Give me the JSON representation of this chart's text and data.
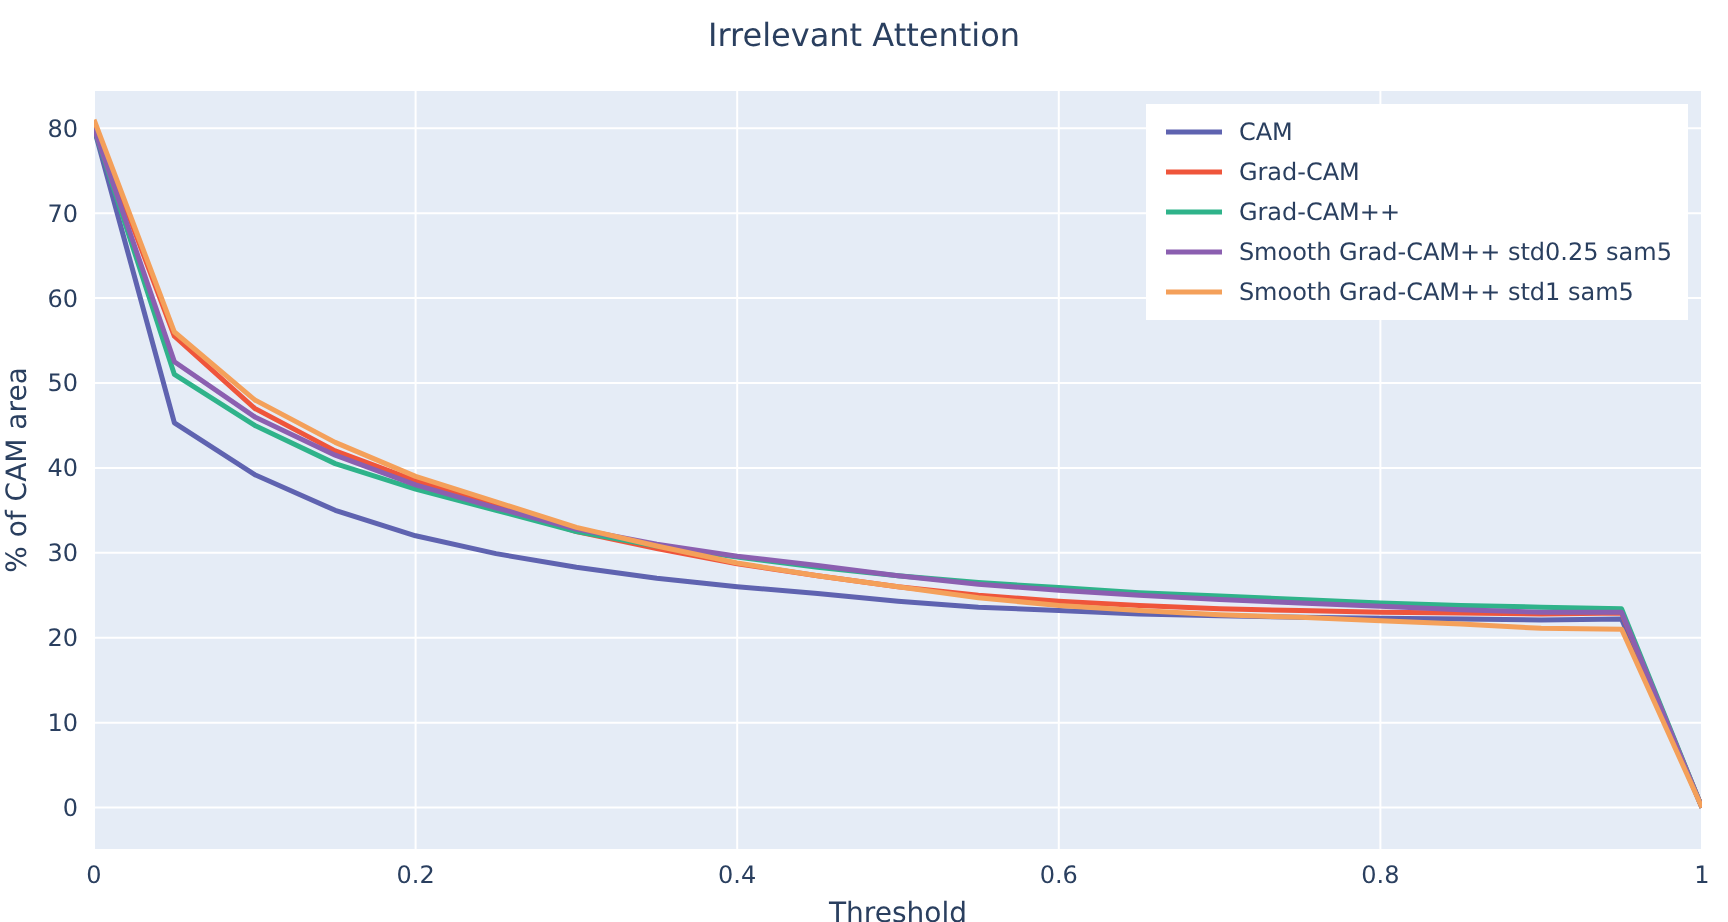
{
  "chart_data": {
    "type": "line",
    "title": "Irrelevant Attention",
    "xlabel": "Threshold",
    "ylabel": "% of CAM area",
    "x": [
      0,
      0.05,
      0.1,
      0.15,
      0.2,
      0.25,
      0.3,
      0.35,
      0.4,
      0.45,
      0.5,
      0.55,
      0.6,
      0.65,
      0.7,
      0.75,
      0.8,
      0.85,
      0.9,
      0.95,
      1
    ],
    "series": [
      {
        "name": "CAM",
        "color": "#5f63b0",
        "values": [
          80,
          45.3,
          39.2,
          35,
          32,
          29.9,
          28.3,
          27,
          26,
          25.2,
          24.3,
          23.6,
          23.2,
          22.8,
          22.6,
          22.4,
          22.3,
          22.2,
          22.1,
          22.2,
          0
        ]
      },
      {
        "name": "Grad-CAM",
        "color": "#ef553b",
        "values": [
          80.5,
          55.5,
          47,
          42,
          38.5,
          35.5,
          32.5,
          30.5,
          28.7,
          27.3,
          26,
          25,
          24.3,
          23.8,
          23.4,
          23.2,
          23,
          22.9,
          22.8,
          22.9,
          0
        ]
      },
      {
        "name": "Grad-CAM++",
        "color": "#2fb38a",
        "values": [
          80,
          51,
          45,
          40.5,
          37.5,
          35,
          32.5,
          30.8,
          29.5,
          28.3,
          27.3,
          26.5,
          25.9,
          25.3,
          24.9,
          24.5,
          24.1,
          23.8,
          23.6,
          23.4,
          0
        ]
      },
      {
        "name": "Smooth Grad-CAM++ std0.25 sam5",
        "color": "#8b5fb0",
        "values": [
          80,
          52.5,
          46,
          41.5,
          38,
          35.3,
          32.8,
          31,
          29.6,
          28.5,
          27.3,
          26.3,
          25.6,
          25,
          24.5,
          24.1,
          23.7,
          23.3,
          23,
          23,
          0
        ]
      },
      {
        "name": "Smooth Grad-CAM++ std1 sam5",
        "color": "#f4a05a",
        "values": [
          81,
          56,
          48,
          43,
          39,
          36,
          33,
          30.8,
          28.8,
          27.3,
          26,
          24.7,
          23.8,
          23.2,
          22.7,
          22.4,
          22,
          21.6,
          21.1,
          21,
          0
        ]
      }
    ],
    "xlim": [
      0,
      1
    ],
    "xticks": [
      0,
      0.2,
      0.4,
      0.6,
      0.8,
      1
    ],
    "ylim": [
      -5,
      84.5
    ],
    "yticks": [
      0,
      10,
      20,
      30,
      40,
      50,
      60,
      70,
      80
    ],
    "grid": true,
    "legend": "top right",
    "marker": "none",
    "line_style": "solid"
  }
}
